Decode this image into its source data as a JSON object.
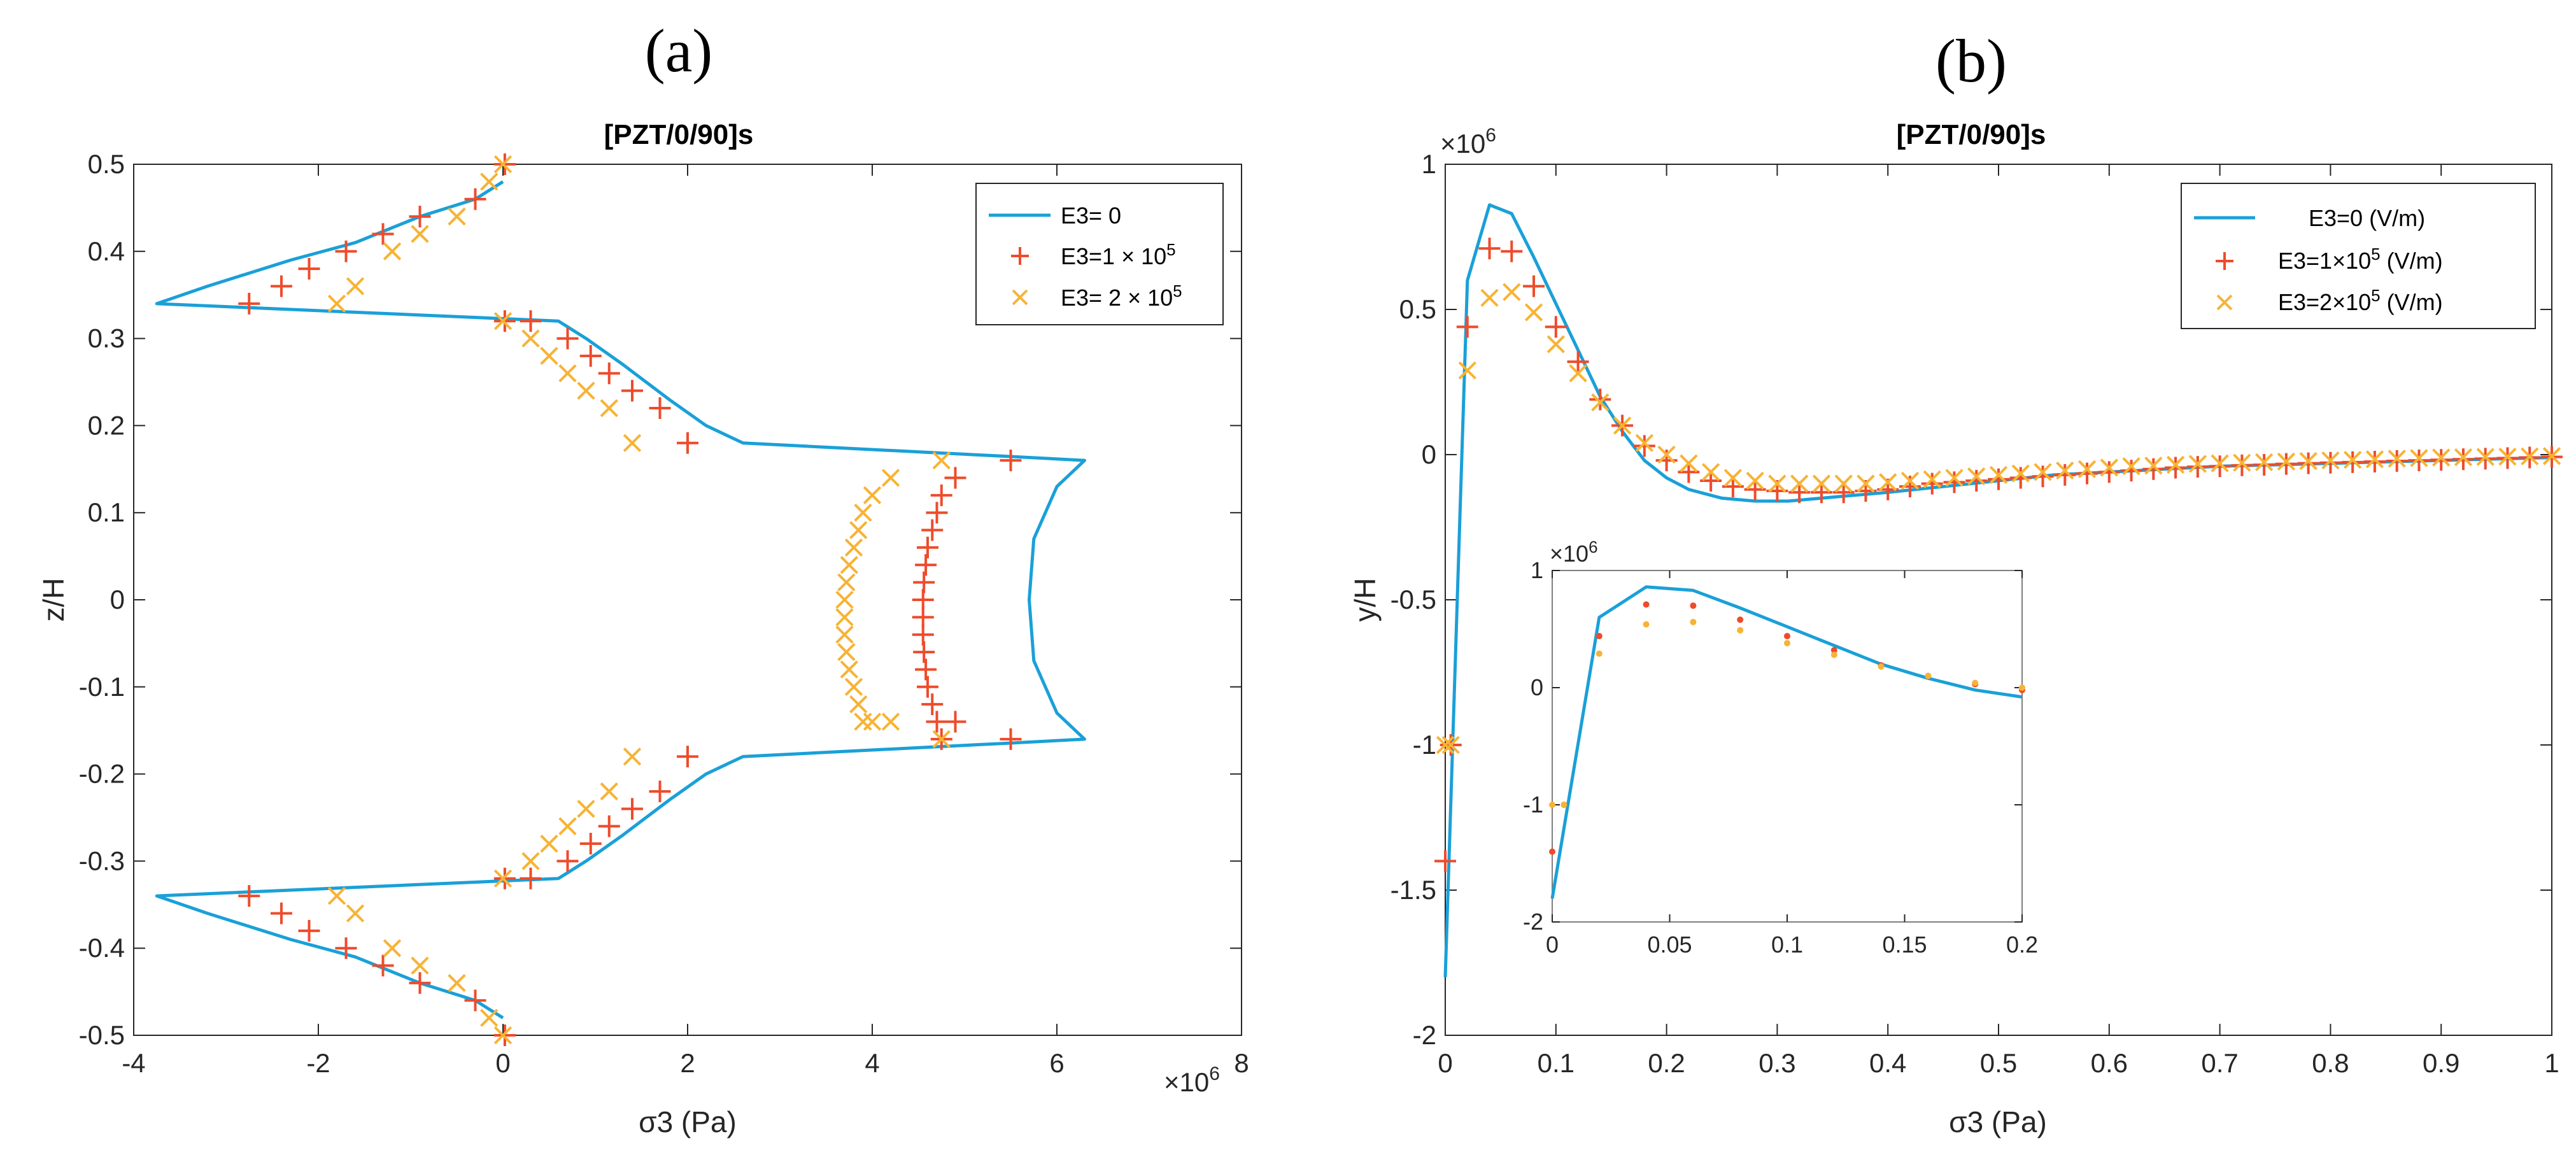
{
  "colors": {
    "line": "#1aa0d8",
    "plus": "#ee4b2b",
    "cross": "#f7b334",
    "axis": "#262626"
  },
  "chart_data": [
    {
      "panel": "(a)",
      "type": "line+scatter",
      "title": "[PZT/0/90]s",
      "xlabel": "σ3 (Pa)",
      "ylabel": "z/H",
      "x_exponent_label": "×10^6",
      "x_exp_prefix": "×10",
      "x_exp_power": "6",
      "xlim": [
        -4,
        8
      ],
      "ylim": [
        -0.5,
        0.5
      ],
      "xticks": [
        -4,
        -2,
        0,
        2,
        4,
        6,
        8
      ],
      "yticks": [
        -0.5,
        -0.4,
        -0.3,
        -0.2,
        -0.1,
        0,
        0.1,
        0.2,
        0.3,
        0.4,
        0.5
      ],
      "legend_position": "top-right",
      "series": [
        {
          "name": "E3= 0",
          "marker": "line",
          "x": [
            0,
            -0.3,
            -0.9,
            -1.6,
            -2.3,
            -3.2,
            -3.75,
            0.6,
            0.9,
            1.3,
            1.8,
            2.2,
            2.6,
            5.4,
            6.3,
            6.0,
            5.75,
            5.7,
            5.75,
            6.0,
            6.3,
            5.4,
            2.6,
            2.2,
            1.8,
            1.3,
            0.9,
            0.6,
            -3.75,
            -3.2,
            -2.3,
            -1.6,
            -0.9,
            -0.3,
            0
          ],
          "y": [
            0.48,
            0.46,
            0.44,
            0.41,
            0.39,
            0.36,
            0.34,
            0.32,
            0.3,
            0.27,
            0.23,
            0.2,
            0.18,
            0.165,
            0.16,
            0.13,
            0.07,
            0,
            -0.07,
            -0.13,
            -0.16,
            -0.165,
            -0.18,
            -0.2,
            -0.23,
            -0.27,
            -0.3,
            -0.32,
            -0.34,
            -0.36,
            -0.39,
            -0.41,
            -0.44,
            -0.46,
            -0.48
          ]
        },
        {
          "name": "E3=1 × 10^5",
          "label_prefix": "E3=1 × 10",
          "label_power": "5",
          "marker": "plus",
          "x": [
            0.02,
            -0.3,
            -0.9,
            -1.3,
            -1.7,
            -2.1,
            -2.4,
            -2.75,
            0.02,
            0.3,
            0.7,
            0.95,
            1.15,
            1.4,
            1.7,
            2.0,
            5.5,
            4.9,
            4.75,
            4.7,
            4.65,
            4.6,
            4.58,
            4.56,
            4.55,
            4.55,
            4.55,
            4.56,
            4.58,
            4.6,
            4.65,
            4.7,
            4.75,
            4.9,
            5.5,
            0.02,
            0.3,
            0.7,
            0.95,
            1.15,
            1.4,
            1.7,
            2.0,
            0.02,
            -0.3,
            -0.9,
            -1.3,
            -1.7,
            -2.1,
            -2.4,
            -2.75
          ],
          "y": [
            0.5,
            0.46,
            0.44,
            0.42,
            0.4,
            0.38,
            0.36,
            0.34,
            0.32,
            0.32,
            0.3,
            0.28,
            0.26,
            0.24,
            0.22,
            0.18,
            0.16,
            0.14,
            0.12,
            0.1,
            0.08,
            0.06,
            0.04,
            0.02,
            0,
            -0.02,
            -0.04,
            -0.06,
            -0.08,
            -0.1,
            -0.12,
            -0.14,
            -0.16,
            -0.14,
            -0.16,
            -0.32,
            -0.32,
            -0.3,
            -0.28,
            -0.26,
            -0.24,
            -0.22,
            -0.18,
            -0.5,
            -0.46,
            -0.44,
            -0.42,
            -0.4,
            -0.38,
            -0.36,
            -0.34
          ]
        },
        {
          "name": "E3=  2 × 10^5",
          "label_prefix": "E3=  2 × 10",
          "label_power": "5",
          "marker": "x",
          "x": [
            0,
            -0.15,
            -0.5,
            -0.9,
            -1.2,
            -1.6,
            -1.8,
            0,
            0.3,
            0.5,
            0.7,
            0.9,
            1.15,
            1.4,
            4.75,
            4.2,
            4.0,
            3.9,
            3.85,
            3.8,
            3.75,
            3.72,
            3.7,
            3.7,
            3.7,
            3.72,
            3.75,
            3.8,
            3.85,
            3.9,
            4.0,
            4.2,
            4.75,
            0,
            0.3,
            0.5,
            0.7,
            0.9,
            1.15,
            1.4,
            0,
            -0.15,
            -0.5,
            -0.9,
            -1.2,
            -1.6,
            -1.8
          ],
          "y": [
            0.5,
            0.48,
            0.44,
            0.42,
            0.4,
            0.36,
            0.34,
            0.32,
            0.3,
            0.28,
            0.26,
            0.24,
            0.22,
            0.18,
            0.16,
            0.14,
            0.12,
            0.1,
            0.08,
            0.06,
            0.04,
            0.02,
            0,
            -0.02,
            -0.04,
            -0.06,
            -0.08,
            -0.1,
            -0.12,
            -0.14,
            -0.14,
            -0.14,
            -0.16,
            -0.32,
            -0.3,
            -0.28,
            -0.26,
            -0.24,
            -0.22,
            -0.18,
            -0.5,
            -0.48,
            -0.44,
            -0.42,
            -0.4,
            -0.36,
            -0.34
          ]
        }
      ]
    },
    {
      "panel": "(b)",
      "type": "line+scatter",
      "title": "[PZT/0/90]s",
      "xlabel": "σ3 (Pa)",
      "ylabel": "y/H",
      "y_exponent_label": "×10^6",
      "y_exp_prefix": "×10",
      "y_exp_power": "6",
      "xlim": [
        0,
        1
      ],
      "ylim": [
        -2,
        1
      ],
      "xticks": [
        0,
        0.1,
        0.2,
        0.3,
        0.4,
        0.5,
        0.6,
        0.7,
        0.8,
        0.9,
        1
      ],
      "yticks": [
        -2,
        -1.5,
        -1,
        -0.5,
        0,
        0.5,
        1
      ],
      "legend_position": "top-right",
      "series": [
        {
          "name": "E3=0 (V/m)",
          "marker": "line",
          "x": [
            0,
            0.02,
            0.04,
            0.06,
            0.08,
            0.1,
            0.12,
            0.14,
            0.16,
            0.18,
            0.2,
            0.22,
            0.25,
            0.28,
            0.31,
            0.34,
            0.37,
            0.4,
            0.45,
            0.5,
            0.55,
            0.6,
            0.65,
            0.7,
            0.75,
            0.8,
            0.85,
            0.9,
            0.95,
            1.0
          ],
          "y": [
            -1.8,
            0.6,
            0.86,
            0.83,
            0.68,
            0.52,
            0.36,
            0.2,
            0.08,
            -0.02,
            -0.08,
            -0.12,
            -0.15,
            -0.16,
            -0.16,
            -0.15,
            -0.14,
            -0.13,
            -0.11,
            -0.09,
            -0.07,
            -0.06,
            -0.05,
            -0.04,
            -0.035,
            -0.03,
            -0.025,
            -0.02,
            -0.015,
            -0.01
          ]
        },
        {
          "name": "E3=1×10^5 (V/m)",
          "label_prefix": "E3=1×10",
          "label_power": "5",
          "label_suffix": " (V/m)",
          "marker": "plus",
          "x": [
            0,
            0.005,
            0.02,
            0.04,
            0.06,
            0.08,
            0.1,
            0.12,
            0.14,
            0.16,
            0.18,
            0.2,
            0.22,
            0.24,
            0.26,
            0.28,
            0.3,
            0.32,
            0.34,
            0.36,
            0.38,
            0.4,
            0.42,
            0.44,
            0.46,
            0.48,
            0.5,
            0.52,
            0.54,
            0.56,
            0.58,
            0.6,
            0.62,
            0.64,
            0.66,
            0.68,
            0.7,
            0.72,
            0.74,
            0.76,
            0.78,
            0.8,
            0.82,
            0.84,
            0.86,
            0.88,
            0.9,
            0.92,
            0.94,
            0.96,
            0.98,
            1.0
          ],
          "y": [
            -1.4,
            -1.0,
            0.44,
            0.71,
            0.7,
            0.58,
            0.44,
            0.32,
            0.19,
            0.1,
            0.03,
            -0.02,
            -0.06,
            -0.09,
            -0.11,
            -0.12,
            -0.125,
            -0.13,
            -0.13,
            -0.13,
            -0.125,
            -0.12,
            -0.11,
            -0.1,
            -0.095,
            -0.09,
            -0.085,
            -0.08,
            -0.075,
            -0.07,
            -0.065,
            -0.06,
            -0.055,
            -0.05,
            -0.045,
            -0.042,
            -0.04,
            -0.037,
            -0.035,
            -0.032,
            -0.03,
            -0.028,
            -0.026,
            -0.024,
            -0.022,
            -0.02,
            -0.018,
            -0.016,
            -0.014,
            -0.012,
            -0.01,
            -0.008
          ]
        },
        {
          "name": "E3=2×10^5 (V/m)",
          "label_prefix": "E3=2×10",
          "label_power": "5",
          "label_suffix": " (V/m)",
          "marker": "x",
          "x": [
            0,
            0.005,
            0.02,
            0.04,
            0.06,
            0.08,
            0.1,
            0.12,
            0.14,
            0.16,
            0.18,
            0.2,
            0.22,
            0.24,
            0.26,
            0.28,
            0.3,
            0.32,
            0.34,
            0.36,
            0.38,
            0.4,
            0.42,
            0.44,
            0.46,
            0.48,
            0.5,
            0.52,
            0.54,
            0.56,
            0.58,
            0.6,
            0.62,
            0.64,
            0.66,
            0.68,
            0.7,
            0.72,
            0.74,
            0.76,
            0.78,
            0.8,
            0.82,
            0.84,
            0.86,
            0.88,
            0.9,
            0.92,
            0.94,
            0.96,
            0.98,
            1.0
          ],
          "y": [
            -1.0,
            -1.0,
            0.29,
            0.54,
            0.56,
            0.49,
            0.38,
            0.28,
            0.18,
            0.1,
            0.04,
            0.0,
            -0.03,
            -0.06,
            -0.08,
            -0.09,
            -0.1,
            -0.1,
            -0.1,
            -0.1,
            -0.1,
            -0.095,
            -0.09,
            -0.085,
            -0.08,
            -0.075,
            -0.07,
            -0.065,
            -0.06,
            -0.055,
            -0.05,
            -0.045,
            -0.04,
            -0.038,
            -0.035,
            -0.032,
            -0.03,
            -0.028,
            -0.026,
            -0.024,
            -0.022,
            -0.02,
            -0.018,
            -0.016,
            -0.014,
            -0.012,
            -0.01,
            -0.009,
            -0.008,
            -0.007,
            -0.006,
            -0.005
          ]
        }
      ],
      "inset": {
        "y_exponent_label": "×10^6",
        "y_exp_prefix": "×10",
        "y_exp_power": "6",
        "xlim": [
          0,
          0.2
        ],
        "ylim": [
          -2,
          1
        ],
        "xticks": [
          0,
          0.05,
          0.1,
          0.15,
          0.2
        ],
        "yticks": [
          -2,
          -1,
          0,
          1
        ],
        "series": [
          {
            "name": "E3=0 (V/m)",
            "marker": "line",
            "x": [
              0,
              0.02,
              0.04,
              0.06,
              0.08,
              0.1,
              0.12,
              0.14,
              0.16,
              0.18,
              0.2
            ],
            "y": [
              -1.8,
              0.6,
              0.86,
              0.83,
              0.68,
              0.52,
              0.36,
              0.2,
              0.08,
              -0.02,
              -0.08
            ]
          },
          {
            "name": "E3=1×10^5 (V/m)",
            "marker": "dot-red",
            "x": [
              0,
              0.005,
              0.02,
              0.04,
              0.06,
              0.08,
              0.1,
              0.12,
              0.14,
              0.16,
              0.18,
              0.2
            ],
            "y": [
              -1.4,
              -1.0,
              0.44,
              0.71,
              0.7,
              0.58,
              0.44,
              0.32,
              0.19,
              0.1,
              0.03,
              -0.02
            ]
          },
          {
            "name": "E3=2×10^5 (V/m)",
            "marker": "dot-orange",
            "x": [
              0,
              0.005,
              0.02,
              0.04,
              0.06,
              0.08,
              0.1,
              0.12,
              0.14,
              0.16,
              0.18,
              0.2
            ],
            "y": [
              -1.0,
              -1.0,
              0.29,
              0.54,
              0.56,
              0.49,
              0.38,
              0.28,
              0.18,
              0.1,
              0.04,
              0.0
            ]
          }
        ]
      }
    }
  ]
}
